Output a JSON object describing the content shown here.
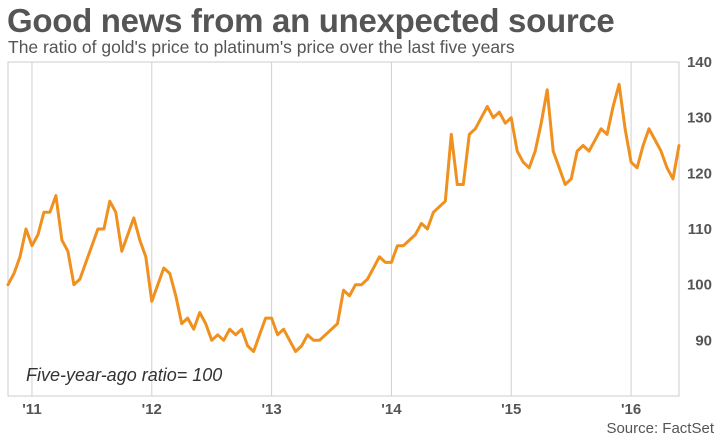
{
  "title": "Good news from an unexpected source",
  "subtitle": "The ratio of gold's price to platinum's price over the last five years",
  "source": "Source: FactSet",
  "annotation": "Five-year-ago ratio= 100",
  "colors": {
    "line": "#f0901e",
    "grid": "#d0d0d0",
    "text": "#555555"
  },
  "chart_data": {
    "type": "line",
    "title": "Good news from an unexpected source",
    "subtitle": "The ratio of gold's price to platinum's price over the last five years",
    "ylim": [
      80,
      140
    ],
    "xlim": [
      2010.8,
      2016.4
    ],
    "y_ticks": [
      90,
      100,
      110,
      120,
      130,
      140
    ],
    "x_ticks": [
      {
        "value": 2011,
        "label": "'11"
      },
      {
        "value": 2012,
        "label": "'12"
      },
      {
        "value": 2013,
        "label": "'13"
      },
      {
        "value": 2014,
        "label": "'14"
      },
      {
        "value": 2015,
        "label": "'15"
      },
      {
        "value": 2016,
        "label": "'16"
      }
    ],
    "grid": "vertical",
    "series": [
      {
        "x": [
          2010.8,
          2010.85,
          2010.9,
          2010.95,
          2011.0,
          2011.05,
          2011.1,
          2011.15,
          2011.2,
          2011.25,
          2011.3,
          2011.35,
          2011.4,
          2011.45,
          2011.5,
          2011.55,
          2011.6,
          2011.65,
          2011.7,
          2011.75,
          2011.8,
          2011.85,
          2011.9,
          2011.95,
          2012.0,
          2012.05,
          2012.1,
          2012.15,
          2012.2,
          2012.25,
          2012.3,
          2012.35,
          2012.4,
          2012.45,
          2012.5,
          2012.55,
          2012.6,
          2012.65,
          2012.7,
          2012.75,
          2012.8,
          2012.85,
          2012.9,
          2012.95,
          2013.0,
          2013.05,
          2013.1,
          2013.15,
          2013.2,
          2013.25,
          2013.3,
          2013.35,
          2013.4,
          2013.45,
          2013.5,
          2013.55,
          2013.6,
          2013.65,
          2013.7,
          2013.75,
          2013.8,
          2013.85,
          2013.9,
          2013.95,
          2014.0,
          2014.05,
          2014.1,
          2014.15,
          2014.2,
          2014.25,
          2014.3,
          2014.35,
          2014.4,
          2014.45,
          2014.5,
          2014.55,
          2014.6,
          2014.65,
          2014.7,
          2014.75,
          2014.8,
          2014.85,
          2014.9,
          2014.95,
          2015.0,
          2015.05,
          2015.1,
          2015.15,
          2015.2,
          2015.25,
          2015.3,
          2015.35,
          2015.4,
          2015.45,
          2015.5,
          2015.55,
          2015.6,
          2015.65,
          2015.7,
          2015.75,
          2015.8,
          2015.85,
          2015.9,
          2015.95,
          2016.0,
          2016.05,
          2016.1,
          2016.15,
          2016.2,
          2016.25,
          2016.3,
          2016.35,
          2016.4
        ],
        "values": [
          100,
          102,
          105,
          110,
          107,
          109,
          113,
          113,
          116,
          108,
          106,
          100,
          101,
          104,
          107,
          110,
          110,
          115,
          113,
          106,
          109,
          112,
          108,
          105,
          97,
          100,
          103,
          102,
          98,
          93,
          94,
          92,
          95,
          93,
          90,
          91,
          90,
          92,
          91,
          92,
          89,
          88,
          91,
          94,
          94,
          91,
          92,
          90,
          88,
          89,
          91,
          90,
          90,
          91,
          92,
          93,
          99,
          98,
          100,
          100,
          101,
          103,
          105,
          104,
          104,
          107,
          107,
          108,
          109,
          111,
          110,
          113,
          114,
          115,
          127,
          118,
          118,
          127,
          128,
          130,
          132,
          130,
          131,
          129,
          130,
          124,
          122,
          121,
          124,
          129,
          135,
          124,
          121,
          118,
          119,
          124,
          125,
          124,
          126,
          128,
          127,
          132,
          136,
          128,
          122,
          121,
          125,
          128,
          126,
          124,
          121,
          119,
          125
        ]
      }
    ]
  }
}
